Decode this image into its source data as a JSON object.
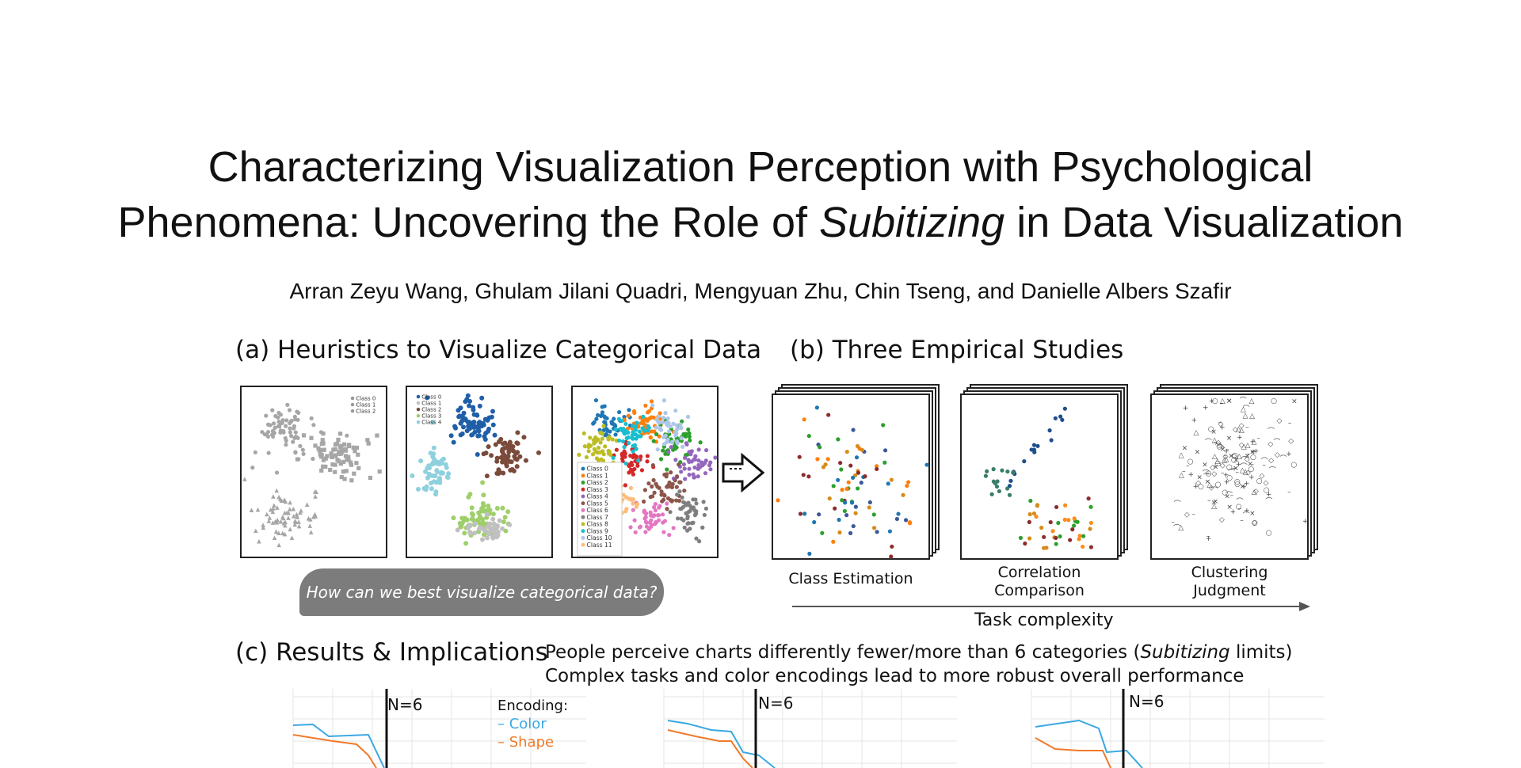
{
  "paper": {
    "title_line1": "Characterizing Visualization Perception with Psychological",
    "title_line2_pre": "Phenomena: Uncovering the Role of ",
    "title_line2_em": "Subitizing",
    "title_line2_post": " in Data Visualization",
    "authors": "Arran Zeyu Wang, Ghulam Jilani Quadri, Mengyuan Zhu, Chin Tseng, and Danielle Albers Szafir"
  },
  "section_a": {
    "heading": "(a) Heuristics to Visualize Categorical Data",
    "bubble_text": "How can we best visualize categorical data?",
    "panel1_legend": [
      "Class 0",
      "Class 1",
      "Class 2"
    ],
    "panel2_legend": [
      "Class 0",
      "Class 1",
      "Class 2",
      "Class 3",
      "Class 4"
    ],
    "panel3_legend": [
      "Class 0",
      "Class 1",
      "Class 2",
      "Class 3",
      "Class 4",
      "Class 5",
      "Class 6",
      "Class 7",
      "Class 8",
      "Class 9",
      "Class 10",
      "Class 11"
    ],
    "colors": [
      "#1f5fa8",
      "#7a4a3a",
      "#9ecf6a",
      "#8fd0de",
      "#c0c0c0"
    ],
    "panel3_colors": [
      "#1f77b4",
      "#ff7f0e",
      "#2ca02c",
      "#d62728",
      "#9467bd",
      "#8c564b",
      "#e377c2",
      "#7f7f7f",
      "#bcbd22",
      "#17becf",
      "#aec7e8",
      "#ffbb78"
    ]
  },
  "section_b": {
    "heading": "(b) Three Empirical Studies",
    "tasks": [
      {
        "line1": "Class Estimation",
        "line2": ""
      },
      {
        "line1": "Correlation",
        "line2": "Comparison"
      },
      {
        "line1": "Clustering",
        "line2": "Judgment"
      }
    ],
    "axis_label": "Task complexity"
  },
  "section_c": {
    "heading": "(c) Results & Implications",
    "finding1_pre": "People perceive charts differently fewer/more than 6 categories (",
    "finding1_em": "Subitizing",
    "finding1_post": " limits)",
    "finding2": "Complex tasks and color encodings lead to more robust overall performance",
    "n_label": "N=6",
    "encoding_title": "Encoding:",
    "encoding_items": [
      {
        "name": "– Color",
        "color": "#3aa8e0"
      },
      {
        "name": "– Shape",
        "color": "#f07a2a"
      }
    ]
  }
}
